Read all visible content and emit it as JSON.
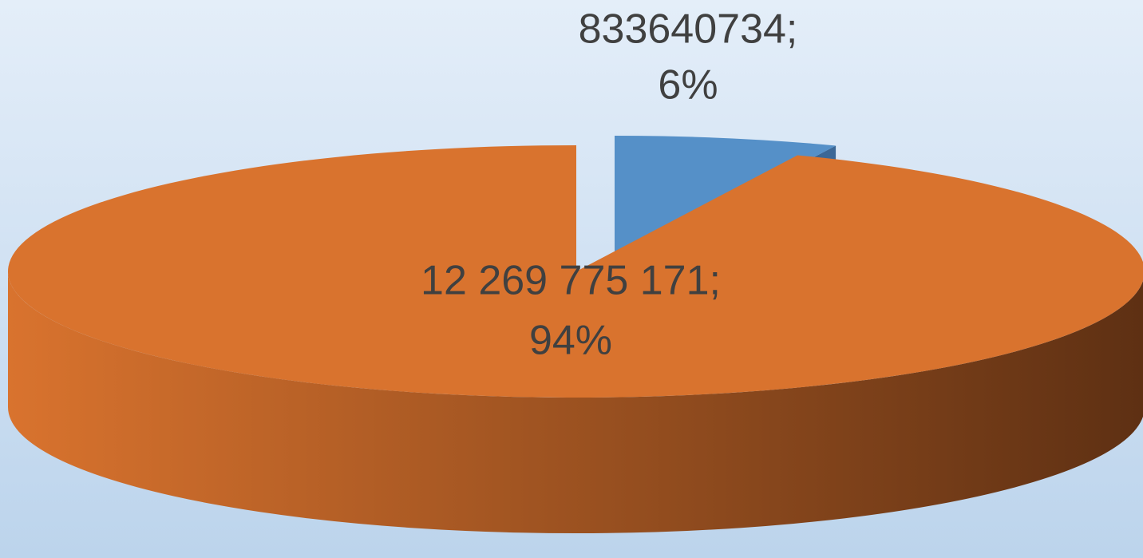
{
  "chart_data": {
    "type": "pie",
    "values": [
      833640734,
      12269775171
    ],
    "value_labels": [
      "833640734;",
      "12 269 775 171;"
    ],
    "percent_labels": [
      "6%",
      "94%"
    ],
    "colors": [
      "#5590c8",
      "#d9732e"
    ],
    "side_colors": [
      "#3b6796",
      "#5e3013"
    ],
    "three_d": true
  }
}
